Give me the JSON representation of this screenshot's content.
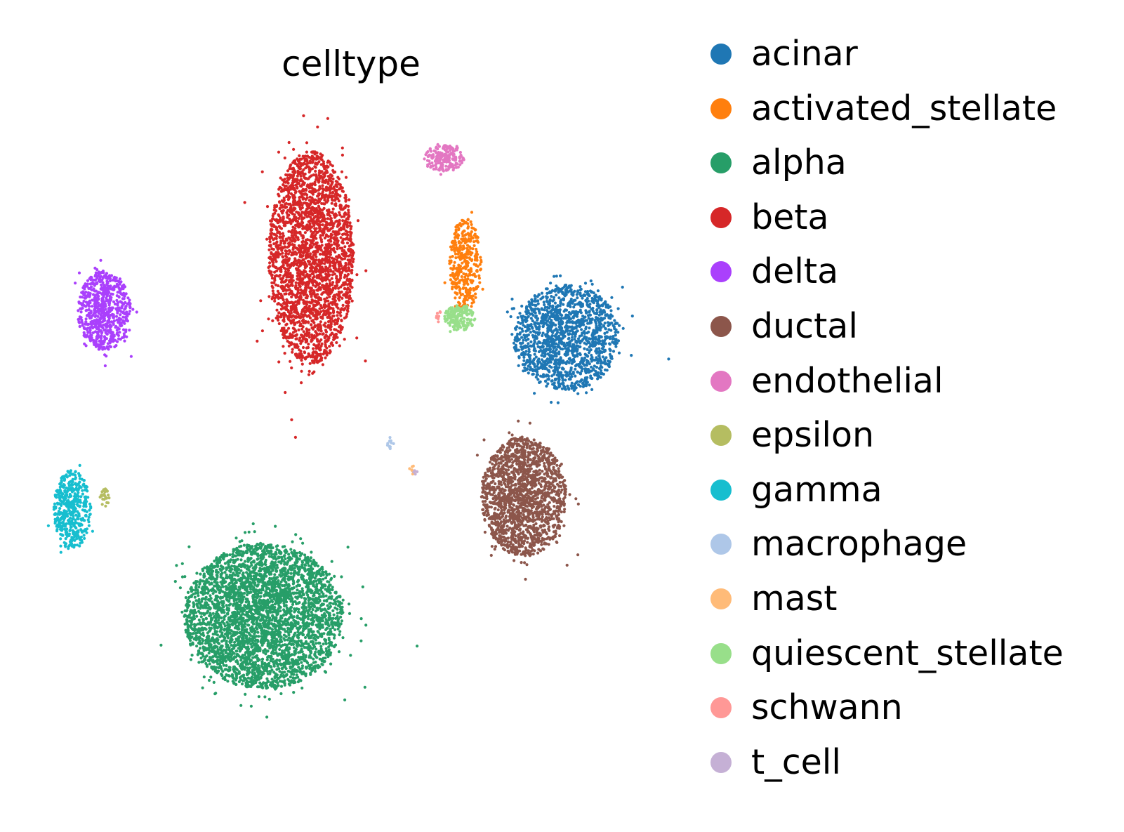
{
  "chart_data": {
    "type": "scatter",
    "title": "celltype",
    "xlabel": "",
    "ylabel": "",
    "grid": false,
    "axes_visible": false,
    "legend_position": "right",
    "categories": [
      {
        "name": "acinar",
        "color": "#1f77b4"
      },
      {
        "name": "activated_stellate",
        "color": "#ff7f0e"
      },
      {
        "name": "alpha",
        "color": "#279e68"
      },
      {
        "name": "beta",
        "color": "#d62728"
      },
      {
        "name": "delta",
        "color": "#aa40fc"
      },
      {
        "name": "ductal",
        "color": "#8c564b"
      },
      {
        "name": "endothelial",
        "color": "#e377c2"
      },
      {
        "name": "epsilon",
        "color": "#b5bd61"
      },
      {
        "name": "gamma",
        "color": "#17becf"
      },
      {
        "name": "macrophage",
        "color": "#aec7e8"
      },
      {
        "name": "mast",
        "color": "#ffbb78"
      },
      {
        "name": "quiescent_stellate",
        "color": "#98df8a"
      },
      {
        "name": "schwann",
        "color": "#ff9896"
      },
      {
        "name": "t_cell",
        "color": "#c5b0d5"
      }
    ],
    "clusters": [
      {
        "celltype": "beta",
        "center": [
          0.0,
          1.2
        ],
        "spread": [
          0.8,
          1.6
        ],
        "count": 2600
      },
      {
        "celltype": "alpha",
        "center": [
          -0.9,
          -4.2
        ],
        "spread": [
          1.5,
          1.1
        ],
        "count": 3800
      },
      {
        "celltype": "delta",
        "center": [
          -3.9,
          0.4
        ],
        "spread": [
          0.5,
          0.6
        ],
        "count": 700
      },
      {
        "celltype": "gamma",
        "center": [
          -4.5,
          -2.6
        ],
        "spread": [
          0.35,
          0.6
        ],
        "count": 450
      },
      {
        "celltype": "epsilon",
        "center": [
          -3.9,
          -2.4
        ],
        "spread": [
          0.1,
          0.15
        ],
        "count": 25
      },
      {
        "celltype": "acinar",
        "center": [
          4.8,
          0.0
        ],
        "spread": [
          1.0,
          0.8
        ],
        "count": 1500
      },
      {
        "celltype": "ductal",
        "center": [
          4.0,
          -2.4
        ],
        "spread": [
          0.8,
          0.9
        ],
        "count": 1700
      },
      {
        "celltype": "activated_stellate",
        "center": [
          2.9,
          1.1
        ],
        "spread": [
          0.3,
          0.7
        ],
        "count": 380
      },
      {
        "celltype": "quiescent_stellate",
        "center": [
          2.8,
          0.3
        ],
        "spread": [
          0.3,
          0.2
        ],
        "count": 160
      },
      {
        "celltype": "endothelial",
        "center": [
          2.5,
          2.7
        ],
        "spread": [
          0.4,
          0.2
        ],
        "count": 200
      },
      {
        "celltype": "macrophage",
        "center": [
          1.5,
          -1.6
        ],
        "spread": [
          0.08,
          0.08
        ],
        "count": 15
      },
      {
        "celltype": "mast",
        "center": [
          1.9,
          -2.0
        ],
        "spread": [
          0.06,
          0.06
        ],
        "count": 8
      },
      {
        "celltype": "schwann",
        "center": [
          2.4,
          0.3
        ],
        "spread": [
          0.05,
          0.1
        ],
        "count": 12
      },
      {
        "celltype": "t_cell",
        "center": [
          1.95,
          -2.05
        ],
        "spread": [
          0.05,
          0.05
        ],
        "count": 4
      }
    ],
    "xlim": [
      -5.2,
      6.3
    ],
    "ylim": [
      -5.6,
      3.6
    ]
  }
}
